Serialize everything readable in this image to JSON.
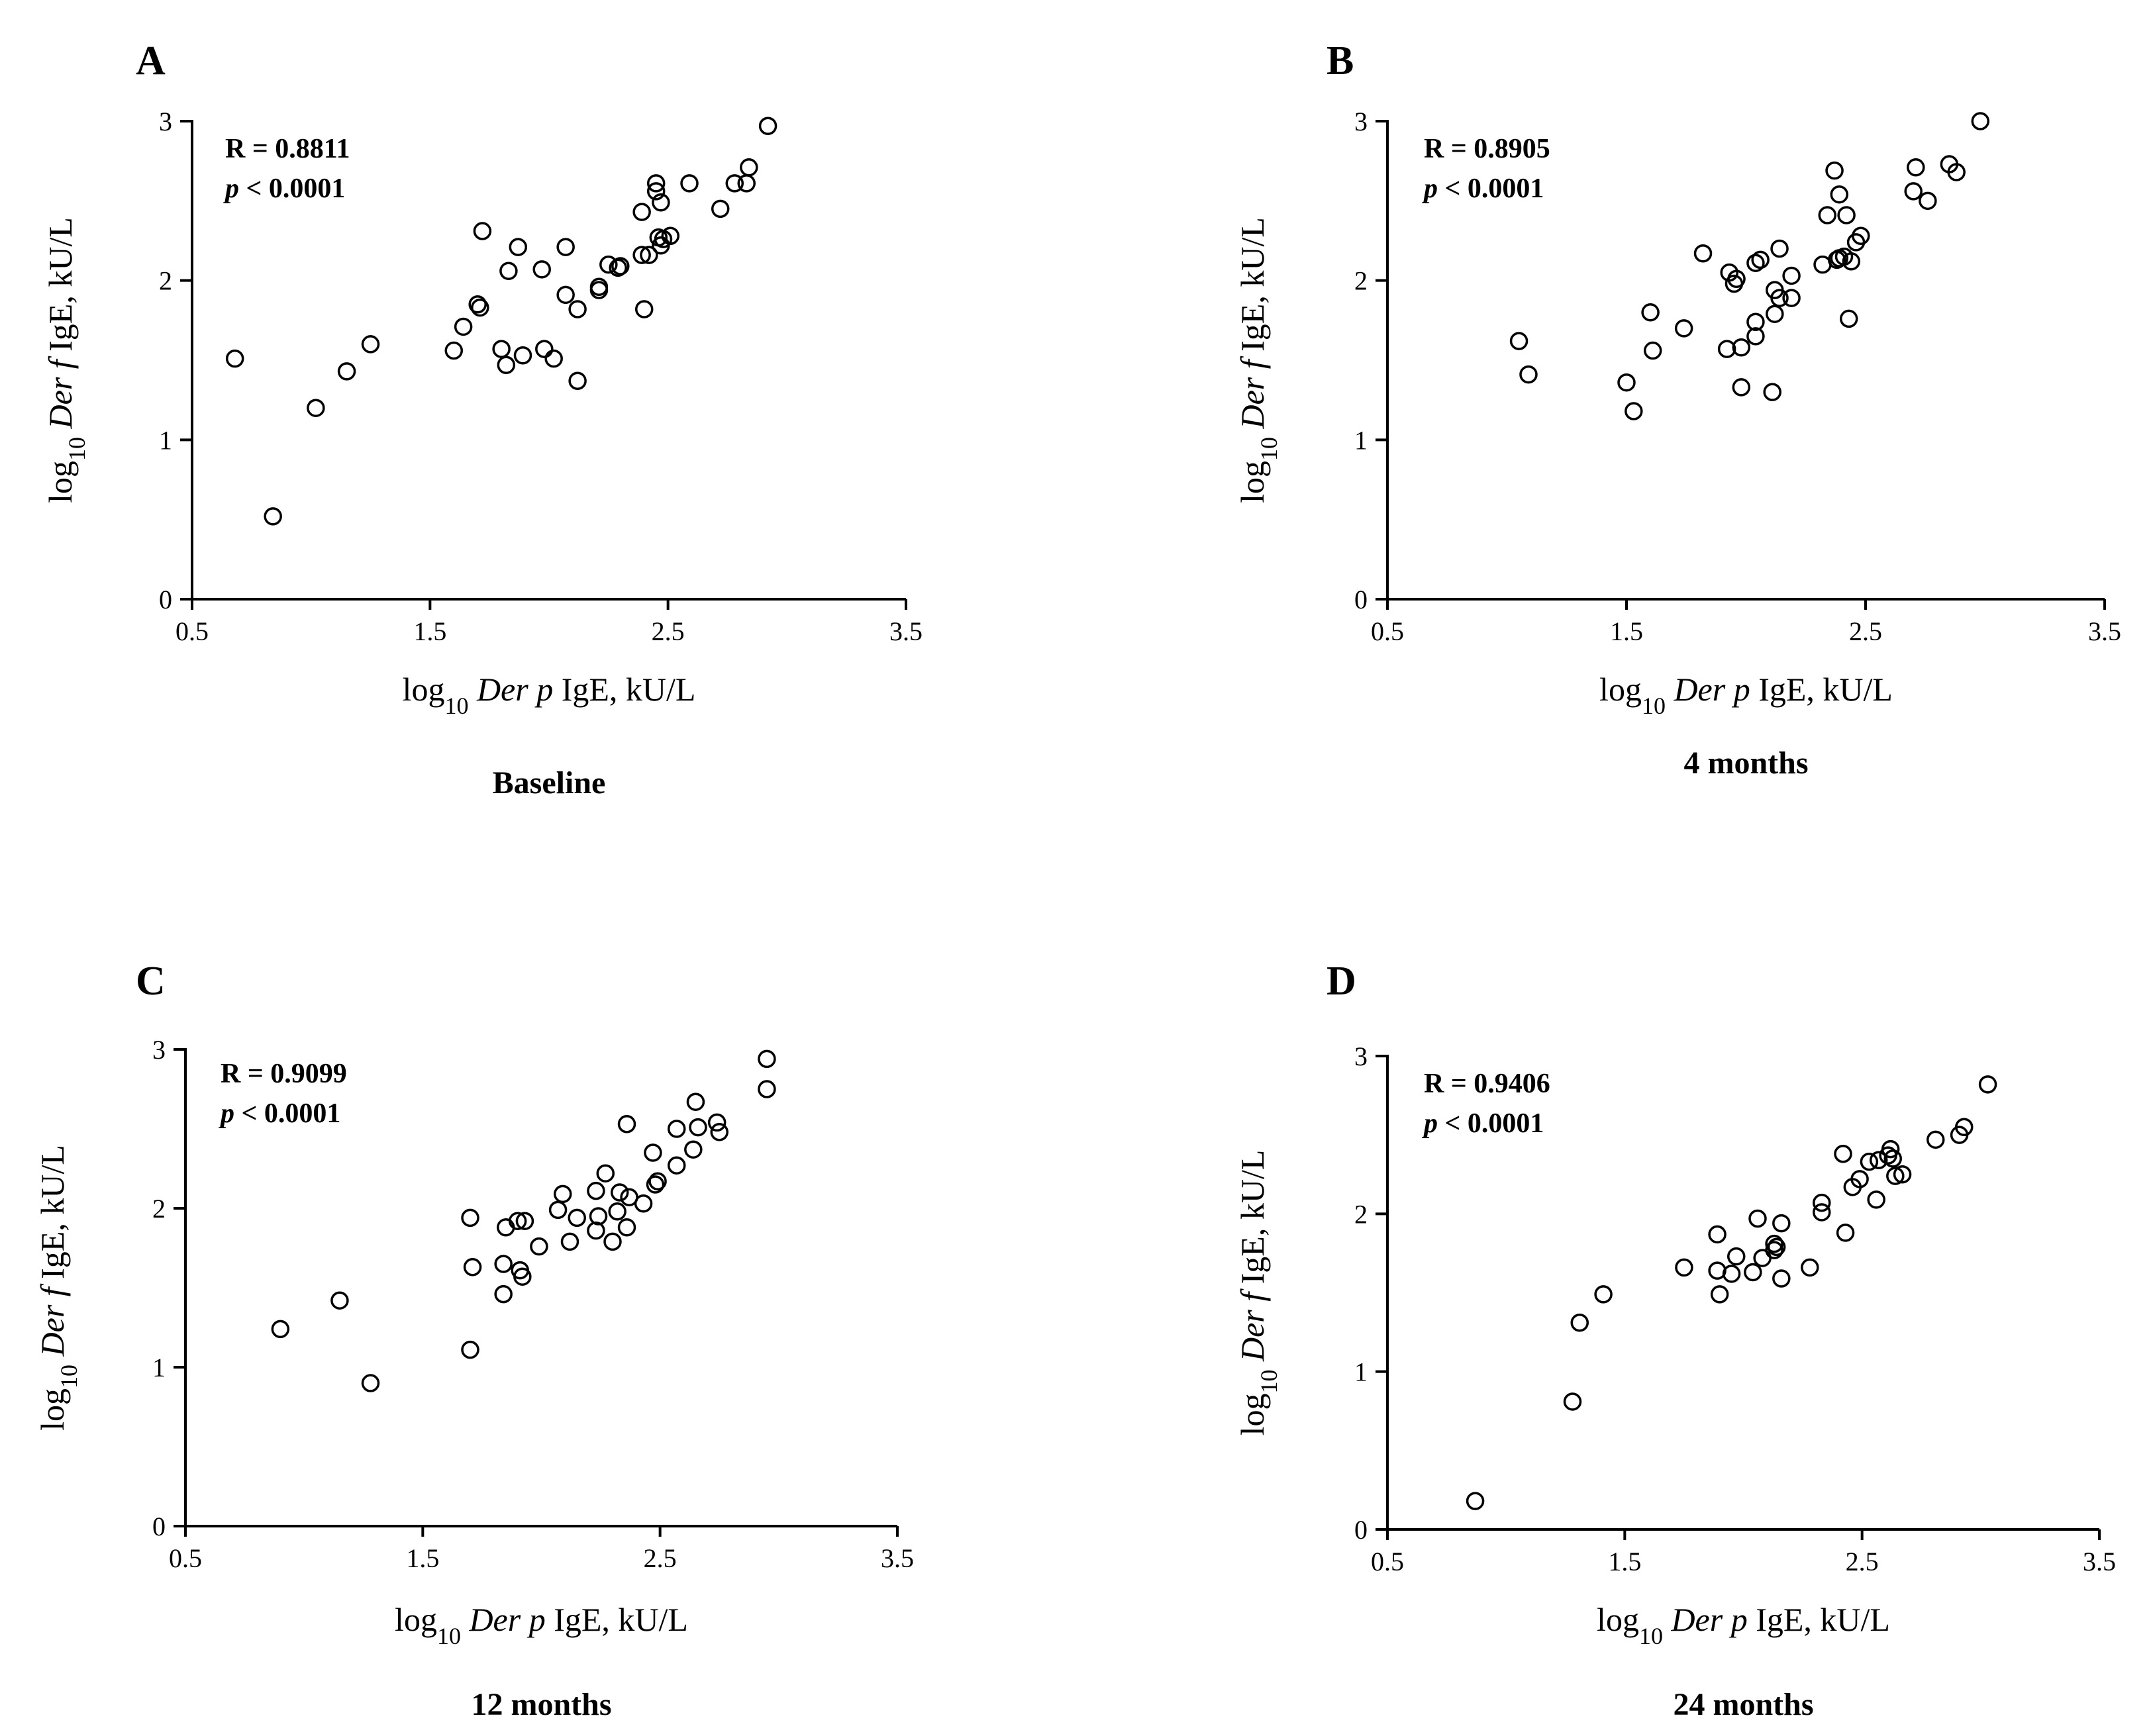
{
  "chart_data": [
    {
      "type": "scatter",
      "panel": "A",
      "caption": "Baseline",
      "stats": {
        "r": "R = 0.8811",
        "p_sym": "p",
        "p_rest": " < 0.0001"
      },
      "xlabel": {
        "pre": "log",
        "sub": "10",
        "ital": " Der p",
        "post": " IgE, kU/L"
      },
      "ylabel": {
        "pre": "log",
        "sub": "10",
        "ital": " Der f",
        "post": " IgE, kU/L"
      },
      "xlim": [
        0.5,
        3.5
      ],
      "ylim": [
        0,
        3
      ],
      "xticks": [
        0.5,
        1.5,
        2.5,
        3.5
      ],
      "xtick_labels": [
        "0.5",
        "1.5",
        "2.5",
        "3.5"
      ],
      "yticks": [
        0,
        1,
        2,
        3
      ],
      "ytick_labels": [
        "0",
        "1",
        "2",
        "3"
      ],
      "points": [
        [
          0.68,
          1.51
        ],
        [
          0.84,
          0.52
        ],
        [
          1.02,
          1.2
        ],
        [
          1.15,
          1.43
        ],
        [
          1.25,
          1.6
        ],
        [
          1.6,
          1.56
        ],
        [
          1.64,
          1.71
        ],
        [
          1.7,
          1.85
        ],
        [
          1.71,
          1.83
        ],
        [
          1.72,
          2.31
        ],
        [
          1.8,
          1.57
        ],
        [
          1.82,
          1.47
        ],
        [
          1.83,
          2.06
        ],
        [
          1.87,
          2.21
        ],
        [
          1.89,
          1.53
        ],
        [
          1.97,
          2.07
        ],
        [
          1.98,
          1.57
        ],
        [
          2.02,
          1.51
        ],
        [
          2.07,
          2.21
        ],
        [
          2.07,
          1.91
        ],
        [
          2.12,
          1.82
        ],
        [
          2.12,
          1.37
        ],
        [
          2.21,
          1.94
        ],
        [
          2.21,
          1.96
        ],
        [
          2.25,
          2.1
        ],
        [
          2.29,
          2.08
        ],
        [
          2.3,
          2.09
        ],
        [
          2.39,
          2.43
        ],
        [
          2.39,
          2.16
        ],
        [
          2.4,
          1.82
        ],
        [
          2.42,
          2.16
        ],
        [
          2.45,
          2.56
        ],
        [
          2.45,
          2.61
        ],
        [
          2.46,
          2.27
        ],
        [
          2.47,
          2.49
        ],
        [
          2.47,
          2.22
        ],
        [
          2.48,
          2.26
        ],
        [
          2.51,
          2.28
        ],
        [
          2.59,
          2.61
        ],
        [
          2.72,
          2.45
        ],
        [
          2.78,
          2.61
        ],
        [
          2.83,
          2.61
        ],
        [
          2.84,
          2.71
        ],
        [
          2.92,
          2.97
        ]
      ]
    },
    {
      "type": "scatter",
      "panel": "B",
      "caption": "4 months",
      "stats": {
        "r": "R = 0.8905",
        "p_sym": "p",
        "p_rest": " < 0.0001"
      },
      "xlabel": {
        "pre": "log",
        "sub": "10",
        "ital": " Der p",
        "post": " IgE, kU/L"
      },
      "ylabel": {
        "pre": "log",
        "sub": "10",
        "ital": " Der f",
        "post": " IgE, kU/L"
      },
      "xlim": [
        0.5,
        3.5
      ],
      "ylim": [
        0,
        3
      ],
      "xticks": [
        0.5,
        1.5,
        2.5,
        3.5
      ],
      "xtick_labels": [
        "0.5",
        "1.5",
        "2.5",
        "3.5"
      ],
      "yticks": [
        0,
        1,
        2,
        3
      ],
      "ytick_labels": [
        "0",
        "1",
        "2",
        "3"
      ],
      "points": [
        [
          1.05,
          1.62
        ],
        [
          1.09,
          1.41
        ],
        [
          1.5,
          1.36
        ],
        [
          1.53,
          1.18
        ],
        [
          1.6,
          1.8
        ],
        [
          1.61,
          1.56
        ],
        [
          1.74,
          1.7
        ],
        [
          1.82,
          2.17
        ],
        [
          1.92,
          1.57
        ],
        [
          1.93,
          2.05
        ],
        [
          1.95,
          1.98
        ],
        [
          1.96,
          2.01
        ],
        [
          1.98,
          1.58
        ],
        [
          1.98,
          1.33
        ],
        [
          2.04,
          1.65
        ],
        [
          2.04,
          1.74
        ],
        [
          2.04,
          2.11
        ],
        [
          2.06,
          2.13
        ],
        [
          2.11,
          1.3
        ],
        [
          2.12,
          1.79
        ],
        [
          2.12,
          1.94
        ],
        [
          2.14,
          2.2
        ],
        [
          2.14,
          1.89
        ],
        [
          2.19,
          1.89
        ],
        [
          2.19,
          2.03
        ],
        [
          2.32,
          2.1
        ],
        [
          2.34,
          2.41
        ],
        [
          2.37,
          2.69
        ],
        [
          2.38,
          2.13
        ],
        [
          2.39,
          2.14
        ],
        [
          2.39,
          2.54
        ],
        [
          2.41,
          2.15
        ],
        [
          2.42,
          2.41
        ],
        [
          2.43,
          1.76
        ],
        [
          2.44,
          2.12
        ],
        [
          2.46,
          2.24
        ],
        [
          2.48,
          2.28
        ],
        [
          2.7,
          2.56
        ],
        [
          2.71,
          2.71
        ],
        [
          2.76,
          2.5
        ],
        [
          2.85,
          2.73
        ],
        [
          2.88,
          2.68
        ],
        [
          2.98,
          3.0
        ]
      ]
    },
    {
      "type": "scatter",
      "panel": "C",
      "caption": "12 months",
      "stats": {
        "r": "R = 0.9099",
        "p_sym": "p",
        "p_rest": " < 0.0001"
      },
      "xlabel": {
        "pre": "log",
        "sub": "10",
        "ital": " Der p",
        "post": " IgE, kU/L"
      },
      "ylabel": {
        "pre": "log",
        "sub": "10",
        "ital": " Der f",
        "post": " IgE, kU/L"
      },
      "xlim": [
        0.5,
        3.5
      ],
      "ylim": [
        0,
        3
      ],
      "xticks": [
        0.5,
        1.5,
        2.5,
        3.5
      ],
      "xtick_labels": [
        "0.5",
        "1.5",
        "2.5",
        "3.5"
      ],
      "yticks": [
        0,
        1,
        2,
        3
      ],
      "ytick_labels": [
        "0",
        "1",
        "2",
        "3"
      ],
      "points": [
        [
          0.9,
          1.24
        ],
        [
          1.15,
          1.42
        ],
        [
          1.28,
          0.9
        ],
        [
          1.7,
          1.11
        ],
        [
          1.7,
          1.94
        ],
        [
          1.71,
          1.63
        ],
        [
          1.84,
          1.46
        ],
        [
          1.84,
          1.65
        ],
        [
          1.85,
          1.88
        ],
        [
          1.9,
          1.92
        ],
        [
          1.91,
          1.61
        ],
        [
          1.92,
          1.57
        ],
        [
          1.93,
          1.92
        ],
        [
          1.99,
          1.76
        ],
        [
          2.07,
          1.99
        ],
        [
          2.09,
          2.09
        ],
        [
          2.12,
          1.79
        ],
        [
          2.15,
          1.94
        ],
        [
          2.23,
          2.11
        ],
        [
          2.23,
          1.86
        ],
        [
          2.24,
          1.95
        ],
        [
          2.27,
          2.22
        ],
        [
          2.3,
          1.79
        ],
        [
          2.32,
          1.98
        ],
        [
          2.33,
          2.1
        ],
        [
          2.36,
          1.88
        ],
        [
          2.36,
          2.53
        ],
        [
          2.37,
          2.07
        ],
        [
          2.43,
          2.03
        ],
        [
          2.47,
          2.35
        ],
        [
          2.48,
          2.15
        ],
        [
          2.49,
          2.17
        ],
        [
          2.57,
          2.27
        ],
        [
          2.57,
          2.5
        ],
        [
          2.64,
          2.37
        ],
        [
          2.65,
          2.67
        ],
        [
          2.66,
          2.51
        ],
        [
          2.74,
          2.54
        ],
        [
          2.75,
          2.48
        ],
        [
          2.95,
          2.75
        ],
        [
          2.95,
          2.94
        ]
      ]
    },
    {
      "type": "scatter",
      "panel": "D",
      "caption": "24 months",
      "stats": {
        "r": "R = 0.9406",
        "p_sym": "p",
        "p_rest": " < 0.0001"
      },
      "xlabel": {
        "pre": "log",
        "sub": "10",
        "ital": " Der p",
        "post": " IgE, kU/L"
      },
      "ylabel": {
        "pre": "log",
        "sub": "10",
        "ital": " Der f",
        "post": " IgE, kU/L"
      },
      "xlim": [
        0.5,
        3.5
      ],
      "ylim": [
        0,
        3
      ],
      "xticks": [
        0.5,
        1.5,
        2.5,
        3.5
      ],
      "xtick_labels": [
        "0.5",
        "1.5",
        "2.5",
        "3.5"
      ],
      "yticks": [
        0,
        1,
        2,
        3
      ],
      "ytick_labels": [
        "0",
        "1",
        "2",
        "3"
      ],
      "points": [
        [
          0.87,
          0.18
        ],
        [
          1.28,
          0.81
        ],
        [
          1.31,
          1.31
        ],
        [
          1.41,
          1.49
        ],
        [
          1.75,
          1.66
        ],
        [
          1.89,
          1.64
        ],
        [
          1.89,
          1.87
        ],
        [
          1.9,
          1.49
        ],
        [
          1.95,
          1.62
        ],
        [
          1.97,
          1.73
        ],
        [
          2.04,
          1.63
        ],
        [
          2.06,
          1.97
        ],
        [
          2.08,
          1.72
        ],
        [
          2.13,
          1.77
        ],
        [
          2.13,
          1.81
        ],
        [
          2.14,
          1.79
        ],
        [
          2.16,
          1.94
        ],
        [
          2.16,
          1.59
        ],
        [
          2.28,
          1.66
        ],
        [
          2.33,
          2.01
        ],
        [
          2.33,
          2.07
        ],
        [
          2.42,
          2.38
        ],
        [
          2.43,
          1.88
        ],
        [
          2.46,
          2.17
        ],
        [
          2.49,
          2.22
        ],
        [
          2.53,
          2.33
        ],
        [
          2.56,
          2.09
        ],
        [
          2.57,
          2.34
        ],
        [
          2.61,
          2.37
        ],
        [
          2.62,
          2.41
        ],
        [
          2.63,
          2.35
        ],
        [
          2.64,
          2.24
        ],
        [
          2.67,
          2.25
        ],
        [
          2.81,
          2.47
        ],
        [
          2.91,
          2.5
        ],
        [
          2.93,
          2.55
        ],
        [
          3.03,
          2.82
        ]
      ]
    }
  ]
}
